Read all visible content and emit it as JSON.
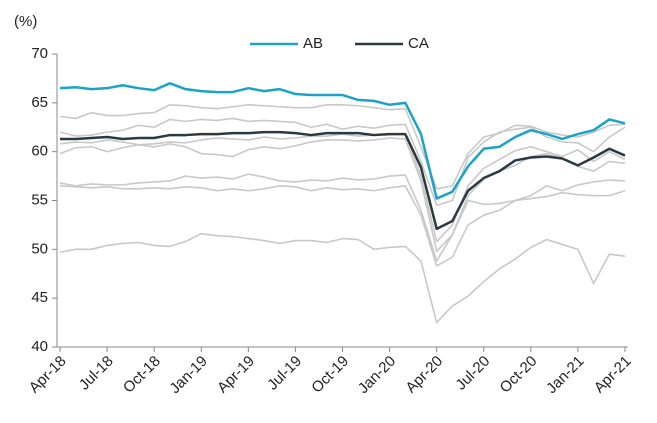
{
  "chart_data": {
    "type": "line",
    "y_label": "(%)",
    "categories": [
      "Apr-18",
      null,
      null,
      "Jul-18",
      null,
      null,
      "Oct-18",
      null,
      null,
      "Jan-19",
      null,
      null,
      "Apr-19",
      null,
      null,
      "Jul-19",
      null,
      null,
      "Oct-19",
      null,
      null,
      "Jan-20",
      null,
      null,
      "Apr-20",
      null,
      null,
      "Jul-20",
      null,
      null,
      "Oct-20",
      null,
      null,
      "Jan-21",
      null,
      null,
      "Apr-21"
    ],
    "series": [
      {
        "color": "#c8c8c8",
        "values": [
          63.6,
          63.4,
          64.0,
          63.7,
          63.7,
          63.9,
          64.0,
          64.8,
          64.7,
          64.5,
          64.4,
          64.6,
          64.8,
          64.7,
          64.6,
          64.5,
          64.5,
          64.8,
          64.8,
          64.7,
          64.5,
          64.3,
          64.4,
          60.5,
          56.2,
          56.5,
          59.8,
          61.5,
          61.9,
          62.7,
          62.6,
          62.0,
          61.7,
          61.5,
          62.0,
          62.7,
          62.8
        ]
      },
      {
        "color": "#c8c8c8",
        "values": [
          62.0,
          61.6,
          61.7,
          62.0,
          62.2,
          62.7,
          62.5,
          63.3,
          63.1,
          63.3,
          63.2,
          63.4,
          63.1,
          63.2,
          63.1,
          63.0,
          62.5,
          62.8,
          62.3,
          62.6,
          62.4,
          62.7,
          62.8,
          59.0,
          54.5,
          55.0,
          59.4,
          61.0,
          62.0,
          62.3,
          62.5,
          61.5,
          61.0,
          60.9,
          60.0,
          61.5,
          62.5
        ]
      },
      {
        "color": "#c8c8c8",
        "values": [
          60.8,
          61.0,
          60.9,
          61.2,
          61.0,
          60.7,
          60.8,
          61.0,
          60.9,
          61.2,
          61.4,
          61.3,
          61.2,
          61.5,
          61.3,
          61.4,
          61.6,
          61.6,
          61.8,
          61.6,
          61.7,
          61.8,
          61.8,
          57.5,
          50.8,
          52.5,
          56.5,
          58.3,
          59.2,
          60.1,
          60.5,
          60.0,
          59.5,
          60.2,
          59.0,
          60.0,
          59.2
        ]
      },
      {
        "color": "#c8c8c8",
        "values": [
          59.8,
          60.4,
          60.5,
          60.0,
          60.4,
          60.7,
          60.5,
          60.8,
          60.5,
          59.8,
          59.7,
          59.5,
          60.2,
          60.5,
          60.3,
          60.6,
          61.0,
          61.2,
          61.2,
          61.1,
          61.2,
          61.4,
          61.3,
          57.0,
          49.8,
          51.5,
          55.5,
          57.2,
          58.0,
          58.6,
          59.5,
          59.8,
          59.3,
          58.5,
          58.0,
          59.0,
          58.8
        ]
      },
      {
        "color": "#c8c8c8",
        "values": [
          56.8,
          56.5,
          56.7,
          56.6,
          56.6,
          56.8,
          56.9,
          57.0,
          57.5,
          57.3,
          57.4,
          57.2,
          57.7,
          57.4,
          57.0,
          56.9,
          57.1,
          57.0,
          57.3,
          57.1,
          57.2,
          57.5,
          57.6,
          54.0,
          48.8,
          51.5,
          55.0,
          54.6,
          54.7,
          55.0,
          55.5,
          56.5,
          56.0,
          56.6,
          56.9,
          57.1,
          57.0
        ]
      },
      {
        "color": "#c8c8c8",
        "values": [
          56.5,
          56.4,
          56.3,
          56.4,
          56.2,
          56.2,
          56.3,
          56.2,
          56.4,
          56.3,
          56.0,
          56.2,
          56.0,
          56.2,
          56.5,
          56.4,
          56.0,
          56.3,
          56.1,
          56.2,
          56.0,
          56.3,
          56.5,
          53.5,
          48.3,
          49.2,
          52.5,
          53.5,
          54.0,
          55.0,
          55.2,
          55.4,
          55.8,
          55.6,
          55.5,
          55.5,
          56.0
        ]
      },
      {
        "color": "#c8c8c8",
        "values": [
          49.7,
          50.0,
          50.0,
          50.4,
          50.6,
          50.7,
          50.4,
          50.3,
          50.8,
          51.6,
          51.4,
          51.3,
          51.1,
          50.9,
          50.6,
          50.9,
          50.9,
          50.7,
          51.1,
          51.0,
          50.0,
          50.2,
          50.3,
          48.8,
          42.5,
          44.2,
          45.2,
          46.7,
          48.0,
          49.0,
          50.2,
          51.0,
          50.5,
          50.0,
          46.5,
          49.5,
          49.3
        ]
      },
      {
        "name": "AB",
        "color": "#1ba3c6",
        "values": [
          66.5,
          66.6,
          66.4,
          66.5,
          66.8,
          66.5,
          66.3,
          67.0,
          66.4,
          66.2,
          66.1,
          66.1,
          66.5,
          66.2,
          66.4,
          65.9,
          65.8,
          65.8,
          65.8,
          65.3,
          65.2,
          64.8,
          65.0,
          61.8,
          55.2,
          55.9,
          58.5,
          60.3,
          60.5,
          61.5,
          62.2,
          61.8,
          61.3,
          61.8,
          62.2,
          63.3,
          62.9
        ]
      },
      {
        "name": "CA",
        "color": "#2b3a42",
        "values": [
          61.3,
          61.3,
          61.4,
          61.5,
          61.3,
          61.4,
          61.4,
          61.7,
          61.7,
          61.8,
          61.8,
          61.9,
          61.9,
          62.0,
          62.0,
          61.9,
          61.7,
          61.9,
          61.9,
          61.9,
          61.7,
          61.8,
          61.8,
          58.4,
          52.1,
          52.9,
          56.0,
          57.3,
          58.0,
          59.1,
          59.4,
          59.5,
          59.3,
          58.6,
          59.4,
          60.3,
          59.6
        ]
      }
    ],
    "ylim": [
      40,
      70
    ],
    "yticks": [
      40,
      45,
      50,
      55,
      60,
      65,
      70
    ],
    "grid": false,
    "legend": "top"
  }
}
